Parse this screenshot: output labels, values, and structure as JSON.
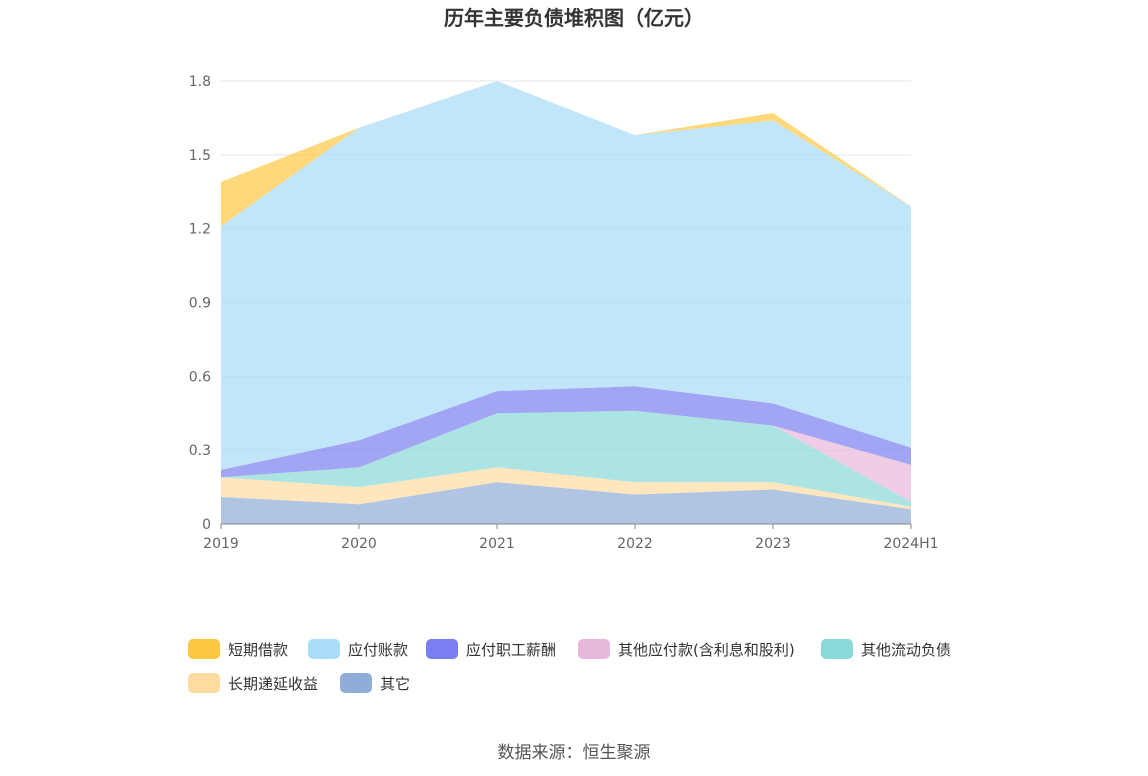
{
  "chart_data": {
    "type": "area",
    "title": "历年主要负债堆积图（亿元）",
    "x": [
      "2019",
      "2020",
      "2021",
      "2022",
      "2023",
      "2024H1"
    ],
    "ylim": [
      0,
      1.8
    ],
    "yticks": [
      "0",
      "0.3",
      "0.6",
      "0.9",
      "1.2",
      "1.5",
      "1.8"
    ],
    "grid": true,
    "legend_position": "bottom",
    "stacked": true,
    "series": [
      {
        "name": "其它",
        "color": "#8fadd9",
        "values": [
          0.11,
          0.08,
          0.17,
          0.12,
          0.14,
          0.06
        ]
      },
      {
        "name": "长期递延收益",
        "color": "#ffdba0",
        "values": [
          0.08,
          0.07,
          0.06,
          0.05,
          0.03,
          0.01
        ]
      },
      {
        "name": "其他流动负债",
        "color": "#89d9d9",
        "values": [
          0.0,
          0.08,
          0.22,
          0.29,
          0.23,
          0.02
        ]
      },
      {
        "name": "其他应付款(含利息和股利)",
        "color": "#e8b8dc",
        "values": [
          0.0,
          0.0,
          0.0,
          0.0,
          0.0,
          0.15
        ]
      },
      {
        "name": "应付职工薪酬",
        "color": "#7b7ef0",
        "values": [
          0.03,
          0.11,
          0.09,
          0.1,
          0.09,
          0.07
        ]
      },
      {
        "name": "应付账款",
        "color": "#a8dcf7",
        "values": [
          0.99,
          1.27,
          1.26,
          1.02,
          1.15,
          0.98
        ]
      },
      {
        "name": "短期借款",
        "color": "#ffc843",
        "values": [
          0.18,
          0.0,
          0.0,
          0.0,
          0.03,
          0.0
        ]
      }
    ]
  },
  "legend": {
    "items": [
      {
        "label": "短期借款",
        "color": "#ffc843"
      },
      {
        "label": "应付账款",
        "color": "#a8dcf7"
      },
      {
        "label": "应付职工薪酬",
        "color": "#7b7ef0"
      },
      {
        "label": "其他应付款(含利息和股利)",
        "color": "#e8b8dc"
      },
      {
        "label": "其他流动负债",
        "color": "#89d9d9"
      },
      {
        "label": "长期递延收益",
        "color": "#ffdba0"
      },
      {
        "label": "其它",
        "color": "#8fadd9"
      }
    ]
  },
  "source": "数据来源：恒生聚源"
}
